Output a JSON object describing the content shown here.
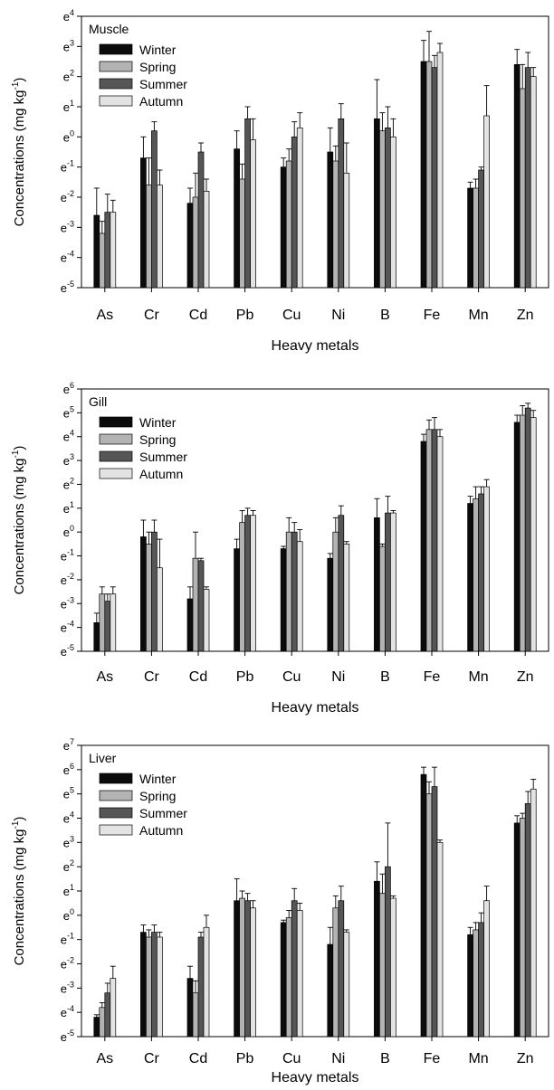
{
  "chart_data": [
    {
      "type": "bar",
      "panel_label": "Muscle",
      "scale": "log (natural)",
      "ylim_exponent": [
        -5,
        4
      ],
      "ylabel": "Concentrations (mg kg",
      "ylabel_sup": "-1",
      "ylabel_close": ")",
      "xlabel": "Heavy metals",
      "categories": [
        "As",
        "Cr",
        "Cd",
        "Pb",
        "Cu",
        "Ni",
        "B",
        "Fe",
        "Mn",
        "Zn"
      ],
      "yticks": [
        "-5",
        "-4",
        "-3",
        "-2",
        "-1",
        "0",
        "1",
        "2",
        "3",
        "4"
      ],
      "legend_position": "top-left",
      "series": [
        {
          "name": "Winter",
          "values": [
            -2.6,
            -0.7,
            -2.2,
            -0.4,
            -1.0,
            -0.5,
            0.6,
            2.5,
            -1.7,
            2.4
          ],
          "errors": [
            0.9,
            0.7,
            0.5,
            0.6,
            0.3,
            0.8,
            1.3,
            0.7,
            0.2,
            0.5
          ]
        },
        {
          "name": "Spring",
          "values": [
            -3.2,
            -1.6,
            -2.0,
            -1.4,
            -0.8,
            -0.8,
            0.2,
            2.5,
            -1.7,
            1.6
          ],
          "errors": [
            0.4,
            0.9,
            0.8,
            0.5,
            0.4,
            0.5,
            0.6,
            1.0,
            0.3,
            0.8
          ]
        },
        {
          "name": "Summer",
          "values": [
            -2.5,
            0.2,
            -0.5,
            0.6,
            0.0,
            0.6,
            0.3,
            2.3,
            -1.1,
            2.3
          ],
          "errors": [
            0.6,
            0.3,
            0.3,
            0.4,
            0.5,
            0.5,
            0.7,
            0.4,
            0.1,
            0.5
          ]
        },
        {
          "name": "Autumn",
          "values": [
            -2.5,
            -1.6,
            -1.8,
            -0.1,
            0.3,
            -1.2,
            0.0,
            2.8,
            0.7,
            2.0
          ],
          "errors": [
            0.4,
            0.5,
            0.4,
            0.7,
            0.5,
            1.0,
            0.6,
            0.3,
            1.0,
            0.3
          ]
        }
      ]
    },
    {
      "type": "bar",
      "panel_label": "Gill",
      "scale": "log (natural)",
      "ylim_exponent": [
        -5,
        6
      ],
      "ylabel": "Concentrations (mg kg",
      "ylabel_sup": "-1",
      "ylabel_close": ")",
      "xlabel": "Heavy metals",
      "categories": [
        "As",
        "Cr",
        "Cd",
        "Pb",
        "Cu",
        "Ni",
        "B",
        "Fe",
        "Mn",
        "Zn"
      ],
      "yticks": [
        "-5",
        "-4",
        "-3",
        "-2",
        "-1",
        "0",
        "1",
        "2",
        "3",
        "4",
        "5",
        "6"
      ],
      "legend_position": "top-left",
      "series": [
        {
          "name": "Winter",
          "values": [
            -3.8,
            -0.2,
            -2.8,
            -0.7,
            -0.7,
            -1.1,
            0.6,
            3.8,
            1.2,
            4.6
          ],
          "errors": [
            0.4,
            0.7,
            0.5,
            0.4,
            0.1,
            0.2,
            0.8,
            0.3,
            0.3,
            0.3
          ]
        },
        {
          "name": "Spring",
          "values": [
            -2.6,
            -0.5,
            -1.1,
            0.4,
            0.0,
            0.0,
            -0.6,
            4.3,
            1.4,
            4.9
          ],
          "errors": [
            0.3,
            0.5,
            1.1,
            0.5,
            0.6,
            0.6,
            0.1,
            0.4,
            0.5,
            0.4
          ]
        },
        {
          "name": "Summer",
          "values": [
            -2.9,
            0.0,
            -1.2,
            0.7,
            0.0,
            0.7,
            0.8,
            4.3,
            1.6,
            5.2
          ],
          "errors": [
            0.3,
            0.5,
            0.1,
            0.3,
            0.4,
            0.4,
            0.7,
            0.5,
            0.3,
            0.2
          ]
        },
        {
          "name": "Autumn",
          "values": [
            -2.6,
            -1.5,
            -2.4,
            0.7,
            -0.4,
            -0.5,
            0.8,
            4.0,
            1.9,
            4.8
          ],
          "errors": [
            0.3,
            1.2,
            0.1,
            0.2,
            0.5,
            0.1,
            0.1,
            0.3,
            0.3,
            0.3
          ]
        }
      ]
    },
    {
      "type": "bar",
      "panel_label": "Liver",
      "scale": "log (natural)",
      "ylim_exponent": [
        -5,
        7
      ],
      "ylabel": "Concentrations (mg kg",
      "ylabel_sup": "-1",
      "ylabel_close": ")",
      "xlabel": "Heavy metals",
      "categories": [
        "As",
        "Cr",
        "Cd",
        "Pb",
        "Cu",
        "Ni",
        "B",
        "Fe",
        "Mn",
        "Zn"
      ],
      "yticks": [
        "-5",
        "-4",
        "-3",
        "-2",
        "-1",
        "0",
        "1",
        "2",
        "3",
        "4",
        "5",
        "6",
        "7"
      ],
      "legend_position": "top-left",
      "series": [
        {
          "name": "Winter",
          "values": [
            -4.2,
            -0.7,
            -2.6,
            0.6,
            -0.3,
            -1.2,
            1.4,
            5.8,
            -0.8,
            3.8
          ],
          "errors": [
            0.1,
            0.3,
            0.5,
            0.9,
            0.1,
            0.7,
            0.8,
            0.3,
            0.3,
            0.3
          ]
        },
        {
          "name": "Spring",
          "values": [
            -3.8,
            -0.9,
            -3.2,
            0.7,
            -0.1,
            0.3,
            0.9,
            5.0,
            -0.6,
            4.0
          ],
          "errors": [
            0.2,
            0.3,
            0.5,
            0.3,
            0.3,
            0.5,
            0.8,
            0.5,
            0.3,
            0.2
          ]
        },
        {
          "name": "Summer",
          "values": [
            -3.2,
            -0.7,
            -0.9,
            0.6,
            0.6,
            0.6,
            2.0,
            5.3,
            -0.3,
            4.6
          ],
          "errors": [
            0.4,
            0.3,
            0.2,
            0.3,
            0.5,
            0.6,
            1.8,
            0.8,
            0.4,
            0.5
          ]
        },
        {
          "name": "Autumn",
          "values": [
            -2.6,
            -0.9,
            -0.5,
            0.3,
            0.2,
            -0.7,
            0.7,
            3.0,
            0.6,
            5.2
          ],
          "errors": [
            0.5,
            0.2,
            0.5,
            0.3,
            0.3,
            0.1,
            0.1,
            0.1,
            0.6,
            0.4
          ]
        }
      ]
    }
  ]
}
